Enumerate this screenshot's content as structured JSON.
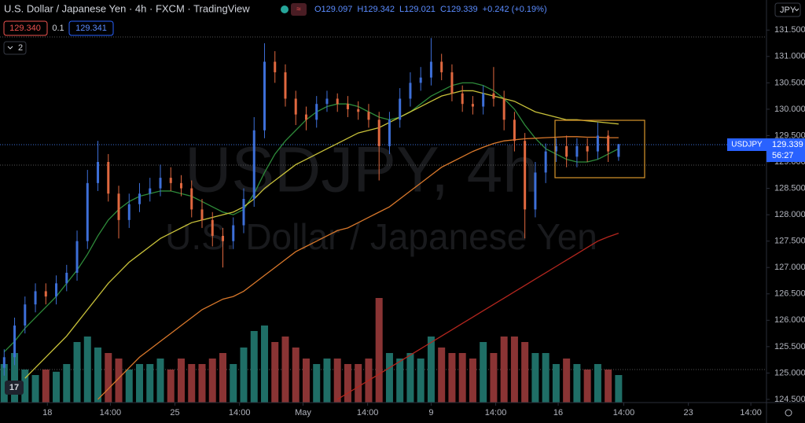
{
  "header": {
    "title": "U.S. Dollar / Japanese Yen · 4h · FXCM · TradingView",
    "ohlc": [
      "O129.097",
      "H129.342",
      "L129.021",
      "C129.339",
      "+0.242 (+0.19%)"
    ],
    "sell": "129.340",
    "spread": "0.1",
    "buy": "129.341",
    "indicators": "2",
    "currency": "JPY"
  },
  "watermark": {
    "symbol": "USDJPY, 4h",
    "name": "U.S. Dollar / Japanese Yen"
  },
  "price_tag": {
    "symbol": "USDJPY",
    "price": "129.339",
    "countdown": "56:27"
  },
  "chart_data": {
    "type": "candlestick",
    "up_color": "#3d6fd8",
    "down_color": "#e0683f",
    "volume_up_color": "#1f6e66",
    "volume_down_color": "#8a3434",
    "open": [
      125.1,
      125.3,
      125.9,
      126.3,
      126.55,
      126.45,
      126.7,
      126.9,
      127.5,
      128.6,
      129.0,
      128.4,
      127.9,
      128.2,
      128.4,
      128.5,
      128.7,
      128.6,
      128.5,
      128.1,
      127.9,
      127.6,
      127.5,
      127.8,
      128.3,
      129.6,
      130.9,
      130.7,
      130.2,
      129.9,
      129.8,
      130.1,
      130.2,
      130.1,
      130.0,
      129.95,
      129.8,
      129.3,
      129.8,
      130.2,
      130.5,
      130.6,
      130.9,
      130.7,
      130.3,
      130.1,
      130.05,
      130.3,
      130.2,
      129.8,
      129.4,
      128.1,
      128.8,
      129.2,
      129.3,
      129.1,
      129.3,
      129.2,
      129.5,
      129.097
    ],
    "high": [
      125.45,
      126.05,
      126.45,
      126.7,
      126.7,
      126.85,
      127.05,
      127.7,
      128.85,
      129.4,
      129.15,
      128.55,
      128.4,
      128.6,
      128.7,
      128.95,
      128.9,
      128.75,
      128.65,
      128.3,
      128.05,
      127.75,
      127.95,
      128.5,
      129.85,
      131.25,
      131.1,
      130.85,
      130.35,
      130.05,
      130.25,
      130.35,
      130.3,
      130.25,
      130.15,
      130.1,
      129.95,
      129.95,
      130.4,
      130.7,
      130.8,
      131.35,
      131.05,
      130.85,
      130.45,
      130.25,
      130.45,
      130.8,
      130.35,
      129.95,
      129.55,
      129.0,
      129.35,
      129.45,
      129.5,
      129.45,
      129.45,
      129.75,
      129.6,
      129.342
    ],
    "low": [
      124.95,
      125.15,
      125.75,
      126.15,
      126.3,
      126.3,
      126.55,
      126.75,
      127.35,
      128.45,
      128.25,
      127.55,
      127.75,
      128.05,
      128.25,
      128.35,
      128.45,
      128.35,
      127.95,
      127.75,
      127.4,
      127.0,
      127.35,
      127.65,
      128.15,
      129.45,
      130.5,
      130.05,
      129.7,
      129.6,
      129.65,
      129.95,
      129.95,
      129.85,
      129.8,
      129.65,
      128.65,
      129.15,
      129.65,
      130.05,
      130.35,
      130.45,
      130.55,
      130.15,
      129.95,
      129.9,
      129.9,
      130.05,
      129.6,
      129.2,
      127.55,
      127.95,
      128.6,
      129.0,
      128.9,
      128.9,
      129.0,
      129.05,
      129.0,
      129.021
    ],
    "close": [
      125.3,
      125.9,
      126.3,
      126.55,
      126.45,
      126.7,
      126.9,
      127.5,
      128.6,
      129.0,
      128.4,
      127.9,
      128.2,
      128.4,
      128.5,
      128.7,
      128.6,
      128.5,
      128.1,
      127.9,
      127.6,
      127.5,
      127.8,
      128.3,
      129.6,
      130.9,
      130.7,
      130.2,
      129.9,
      129.8,
      130.1,
      130.2,
      130.1,
      130.0,
      129.95,
      129.8,
      129.3,
      129.8,
      130.2,
      130.5,
      130.6,
      130.9,
      130.7,
      130.3,
      130.1,
      130.05,
      130.3,
      130.2,
      129.8,
      129.4,
      128.1,
      128.8,
      129.2,
      129.3,
      129.1,
      129.3,
      129.2,
      129.5,
      129.2,
      129.339
    ],
    "volume": [
      35,
      45,
      30,
      25,
      30,
      28,
      35,
      55,
      60,
      50,
      45,
      40,
      30,
      35,
      35,
      40,
      30,
      40,
      35,
      35,
      40,
      45,
      35,
      50,
      65,
      70,
      55,
      60,
      50,
      40,
      35,
      40,
      40,
      35,
      35,
      40,
      95,
      45,
      40,
      45,
      40,
      60,
      50,
      45,
      45,
      40,
      55,
      45,
      60,
      60,
      55,
      45,
      45,
      35,
      40,
      35,
      30,
      35,
      30,
      25
    ],
    "vlim": [
      0,
      100
    ],
    "moving_averages": [
      {
        "color": "#2e8b3a",
        "values": [
          125.4,
          125.6,
          125.85,
          126.05,
          126.25,
          126.45,
          126.7,
          126.95,
          127.25,
          127.6,
          127.9,
          128.1,
          128.25,
          128.35,
          128.4,
          128.45,
          128.45,
          128.4,
          128.35,
          128.25,
          128.15,
          128.05,
          128.0,
          128.1,
          128.4,
          128.8,
          129.15,
          129.4,
          129.6,
          129.8,
          129.95,
          130.05,
          130.1,
          130.1,
          130.05,
          129.95,
          129.85,
          129.8,
          129.85,
          129.95,
          130.1,
          130.25,
          130.35,
          130.45,
          130.5,
          130.5,
          130.45,
          130.35,
          130.2,
          130.0,
          129.7,
          129.45,
          129.25,
          129.15,
          129.05,
          129.0,
          129.0,
          129.05,
          129.15,
          129.25
        ]
      },
      {
        "color": "#c9c23a",
        "values": [
          null,
          null,
          124.9,
          125.1,
          125.3,
          125.5,
          125.7,
          125.95,
          126.2,
          126.45,
          126.7,
          126.9,
          127.1,
          127.25,
          127.4,
          127.55,
          127.65,
          127.75,
          127.85,
          127.9,
          127.95,
          128.0,
          128.05,
          128.15,
          128.3,
          128.5,
          128.65,
          128.8,
          128.95,
          129.05,
          129.15,
          129.25,
          129.35,
          129.45,
          129.55,
          129.6,
          129.65,
          129.75,
          129.85,
          129.95,
          130.05,
          130.15,
          130.25,
          130.3,
          130.35,
          130.35,
          130.3,
          130.25,
          130.2,
          130.15,
          130.05,
          129.95,
          129.9,
          129.85,
          129.8,
          129.8,
          129.78,
          129.76,
          129.74,
          129.72
        ]
      },
      {
        "color": "#d9782b",
        "values": [
          null,
          null,
          null,
          null,
          null,
          null,
          null,
          null,
          null,
          124.5,
          124.7,
          124.9,
          125.1,
          125.3,
          125.45,
          125.6,
          125.75,
          125.9,
          126.05,
          126.2,
          126.3,
          126.4,
          126.45,
          126.55,
          126.7,
          126.85,
          127.0,
          127.15,
          127.3,
          127.4,
          127.5,
          127.6,
          127.7,
          127.75,
          127.85,
          127.95,
          128.05,
          128.15,
          128.3,
          128.45,
          128.6,
          128.75,
          128.9,
          129.0,
          129.1,
          129.2,
          129.28,
          129.35,
          129.4,
          129.42,
          129.44,
          129.45,
          129.46,
          129.47,
          129.48,
          129.48,
          129.47,
          129.47,
          129.46,
          129.46
        ]
      },
      {
        "color": "#b3261e",
        "values": [
          null,
          null,
          null,
          null,
          null,
          null,
          null,
          null,
          null,
          null,
          null,
          null,
          null,
          null,
          null,
          null,
          null,
          null,
          null,
          null,
          null,
          null,
          null,
          null,
          null,
          null,
          null,
          null,
          null,
          null,
          null,
          null,
          124.5,
          124.62,
          124.74,
          124.86,
          124.98,
          125.1,
          125.22,
          125.34,
          125.46,
          125.58,
          125.7,
          125.82,
          125.94,
          126.06,
          126.18,
          126.3,
          126.42,
          126.54,
          126.66,
          126.78,
          126.9,
          127.02,
          127.14,
          127.26,
          127.38,
          127.5,
          127.58,
          127.65
        ]
      }
    ],
    "xlim": [
      -0.4,
      73.2
    ],
    "xticks": [
      {
        "value": 4.15,
        "label": "18"
      },
      {
        "value": 10.2,
        "label": "14:00"
      },
      {
        "value": 16.4,
        "label": "25"
      },
      {
        "value": 22.6,
        "label": "14:00"
      },
      {
        "value": 28.7,
        "label": "May"
      },
      {
        "value": 34.9,
        "label": "14:00"
      },
      {
        "value": 41.0,
        "label": "9"
      },
      {
        "value": 47.2,
        "label": "14:00"
      },
      {
        "value": 53.2,
        "label": "16"
      },
      {
        "value": 59.5,
        "label": "14:00"
      },
      {
        "value": 65.7,
        "label": "23"
      },
      {
        "value": 71.7,
        "label": "14:00"
      }
    ],
    "ylim": [
      124.44,
      132.07
    ],
    "yticks": [
      {
        "value": 124.5,
        "label": "124.500"
      },
      {
        "value": 125,
        "label": "125.000"
      },
      {
        "value": 125.5,
        "label": "125.500"
      },
      {
        "value": 126,
        "label": "126.000"
      },
      {
        "value": 126.5,
        "label": "126.500"
      },
      {
        "value": 127,
        "label": "127.000"
      },
      {
        "value": 127.5,
        "label": "127.500"
      },
      {
        "value": 128,
        "label": "128.000"
      },
      {
        "value": 128.5,
        "label": "128.500"
      },
      {
        "value": 129,
        "label": "129.000"
      },
      {
        "value": 129.5,
        "label": "129.500"
      },
      {
        "value": 130,
        "label": "130.000"
      },
      {
        "value": 130.5,
        "label": "130.500"
      },
      {
        "value": 131,
        "label": "131.000"
      },
      {
        "value": 131.5,
        "label": "131.500"
      }
    ],
    "grid": false
  }
}
